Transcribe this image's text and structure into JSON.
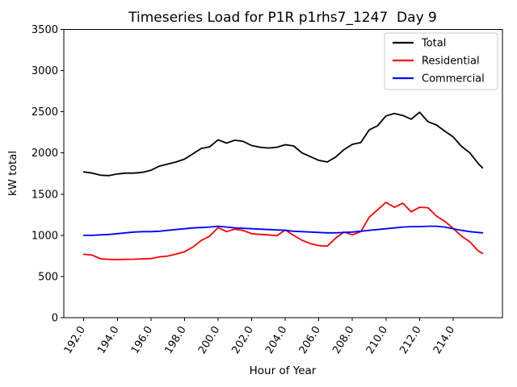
{
  "chart_data": {
    "type": "line",
    "title": "Timeseries Load for P1R p1rhs7_1247  Day 9",
    "xlabel": "Hour of Year",
    "ylabel": "kW total",
    "xlim": [
      190.8125,
      216.9375
    ],
    "ylim": [
      0,
      3500
    ],
    "grid": false,
    "legend_position": "upper right",
    "x_tick_values": [
      192,
      194,
      196,
      198,
      200,
      202,
      204,
      206,
      208,
      210,
      212,
      214
    ],
    "x_tick_labels": [
      "192.0",
      "194.0",
      "196.0",
      "198.0",
      "200.0",
      "202.0",
      "204.0",
      "206.0",
      "208.0",
      "210.0",
      "212.0",
      "214.0"
    ],
    "y_tick_values": [
      0,
      500,
      1000,
      1500,
      2000,
      2500,
      3000,
      3500
    ],
    "y_tick_labels": [
      "0",
      "500",
      "1000",
      "1500",
      "2000",
      "2500",
      "3000",
      "3500"
    ],
    "x": [
      192.0,
      192.5,
      193.0,
      193.5,
      194.0,
      194.5,
      195.0,
      195.5,
      196.0,
      196.5,
      197.0,
      197.5,
      198.0,
      198.5,
      199.0,
      199.5,
      200.0,
      200.5,
      201.0,
      201.5,
      202.0,
      202.5,
      203.0,
      203.5,
      204.0,
      204.5,
      205.0,
      205.5,
      206.0,
      206.5,
      207.0,
      207.5,
      208.0,
      208.5,
      209.0,
      209.5,
      210.0,
      210.5,
      211.0,
      211.5,
      212.0,
      212.5,
      213.0,
      213.5,
      214.0,
      214.5,
      215.0,
      215.5,
      215.75
    ],
    "series": [
      {
        "name": "Total",
        "color": "#000000",
        "values": [
          1770,
          1755,
          1730,
          1725,
          1745,
          1755,
          1755,
          1765,
          1790,
          1840,
          1865,
          1890,
          1925,
          1990,
          2055,
          2075,
          2160,
          2120,
          2155,
          2140,
          2090,
          2070,
          2060,
          2070,
          2100,
          2085,
          2000,
          1955,
          1910,
          1890,
          1950,
          2040,
          2105,
          2125,
          2280,
          2330,
          2450,
          2480,
          2455,
          2410,
          2495,
          2380,
          2340,
          2265,
          2195,
          2080,
          2000,
          1870,
          1820
        ]
      },
      {
        "name": "Residential",
        "color": "#ff0000",
        "values": [
          770,
          760,
          715,
          708,
          705,
          708,
          710,
          715,
          718,
          738,
          748,
          772,
          800,
          858,
          938,
          990,
          1095,
          1045,
          1075,
          1058,
          1020,
          1010,
          1005,
          995,
          1065,
          1000,
          940,
          900,
          875,
          868,
          965,
          1040,
          1005,
          1045,
          1220,
          1310,
          1400,
          1340,
          1390,
          1285,
          1340,
          1335,
          1235,
          1170,
          1085,
          990,
          920,
          810,
          780
        ]
      },
      {
        "name": "Commercial",
        "color": "#0000ff",
        "values": [
          1000,
          1000,
          1005,
          1010,
          1020,
          1030,
          1040,
          1045,
          1045,
          1050,
          1060,
          1070,
          1080,
          1090,
          1095,
          1100,
          1110,
          1100,
          1090,
          1085,
          1080,
          1075,
          1070,
          1065,
          1060,
          1050,
          1045,
          1040,
          1035,
          1030,
          1030,
          1035,
          1040,
          1050,
          1060,
          1070,
          1080,
          1090,
          1100,
          1105,
          1105,
          1110,
          1110,
          1100,
          1080,
          1060,
          1045,
          1035,
          1030
        ]
      }
    ]
  }
}
